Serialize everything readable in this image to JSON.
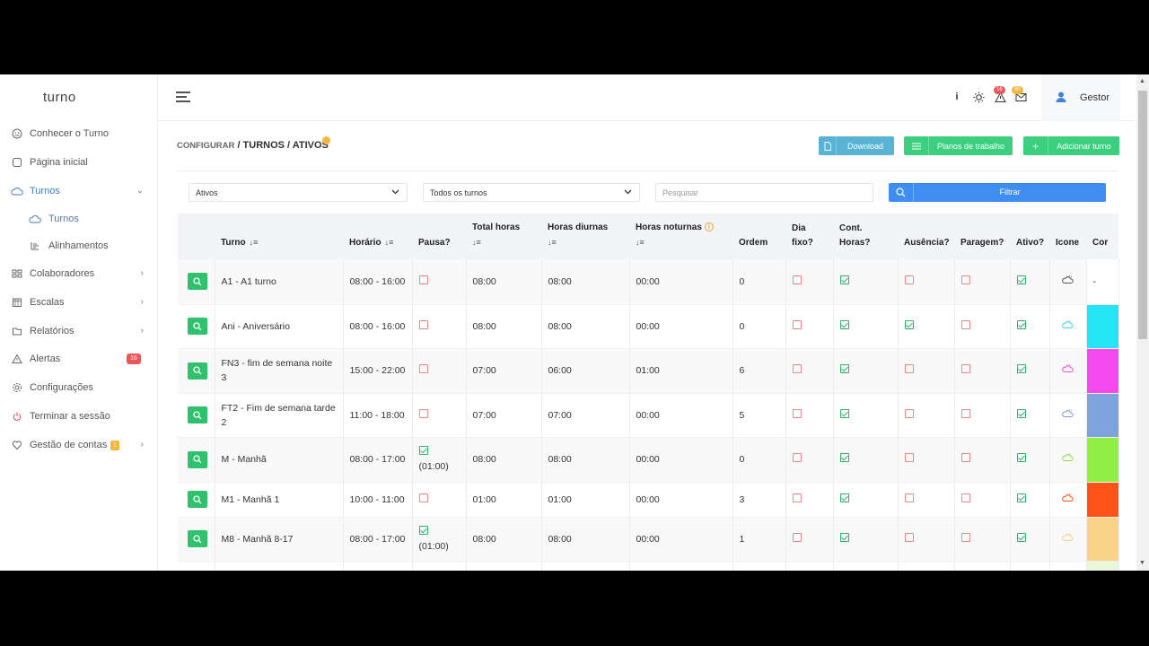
{
  "brand": "turno",
  "sidebar": {
    "items": [
      {
        "label": "Conhecer o Turno",
        "icon": "smile-icon"
      },
      {
        "label": "Página inicial",
        "icon": "square-icon"
      },
      {
        "label": "Turnos",
        "icon": "cloud-icon"
      },
      {
        "label": "Turnos",
        "icon": "cloud-icon"
      },
      {
        "label": "Alinhamentos",
        "icon": "align-icon"
      },
      {
        "label": "Colaboradores",
        "icon": "users-icon"
      },
      {
        "label": "Escalas",
        "icon": "calendar-icon"
      },
      {
        "label": "Relatórios",
        "icon": "folder-icon"
      },
      {
        "label": "Alertas",
        "icon": "warning-icon",
        "badge": "16"
      },
      {
        "label": "Configurações",
        "icon": "gear-icon"
      },
      {
        "label": "Terminar a sessão",
        "icon": "power-icon"
      },
      {
        "label": "Gestão de contas",
        "icon": "heart-icon",
        "badge": "1"
      }
    ]
  },
  "topbar": {
    "info": "i",
    "alerts_badge": "16",
    "mail_badge": "40",
    "user": "Gestor"
  },
  "breadcrumb": {
    "part1": "CONFIGURAR",
    "part2": " / TURNOS / ATIVOS"
  },
  "buttons": {
    "download": "Download",
    "planos": "Planos de trabalho",
    "adicionar": "Adicionar turno"
  },
  "filters": {
    "status": "Ativos",
    "turnos": "Todos os turnos",
    "search_placeholder": "Pesquisar",
    "filtrar": "Filtrar"
  },
  "table": {
    "headers": {
      "turno": "Turno",
      "horario": "Horário",
      "pausa": "Pausa?",
      "total": "Total horas",
      "diurnas": "Horas diurnas",
      "noturnas": "Horas noturnas",
      "ordem": "Ordem",
      "dia_fixo": "Dia fixo?",
      "cont_horas": "Cont. Horas?",
      "ausencia": "Ausência?",
      "paragem": "Paragem?",
      "ativo": "Ativo?",
      "icone": "Icone",
      "cor": "Cor"
    },
    "rows": [
      {
        "turno": "A1 - A1 turno",
        "horario": "08:00 - 16:00",
        "pausa": false,
        "pausa_txt": "",
        "total": "08:00",
        "diurnas": "08:00",
        "noturnas": "00:00",
        "ordem": "0",
        "dia_fixo": false,
        "cont": true,
        "aus": false,
        "par": false,
        "ativo": true,
        "icon_color": "#555555",
        "cor": "",
        "cor_txt": "-"
      },
      {
        "turno": "Ani - Aniversário",
        "horario": "08:00 - 16:00",
        "pausa": false,
        "pausa_txt": "",
        "total": "08:00",
        "diurnas": "08:00",
        "noturnas": "00:00",
        "ordem": "0",
        "dia_fixo": false,
        "cont": true,
        "aus": true,
        "par": false,
        "ativo": true,
        "icon_color": "#33d6f0",
        "cor": "#24e4f6",
        "cor_txt": ""
      },
      {
        "turno": "FN3 - fim de semana noite 3",
        "horario": "15:00 - 22:00",
        "pausa": false,
        "pausa_txt": "",
        "total": "07:00",
        "diurnas": "06:00",
        "noturnas": "01:00",
        "ordem": "6",
        "dia_fixo": false,
        "cont": true,
        "aus": false,
        "par": false,
        "ativo": true,
        "icon_color": "#ee4fe9",
        "cor": "#f44af0",
        "cor_txt": ""
      },
      {
        "turno": "FT2 - Fim de semana tarde 2",
        "horario": "11:00 - 18:00",
        "pausa": false,
        "pausa_txt": "",
        "total": "07:00",
        "diurnas": "07:00",
        "noturnas": "00:00",
        "ordem": "5",
        "dia_fixo": false,
        "cont": true,
        "aus": false,
        "par": false,
        "ativo": true,
        "icon_color": "#7a9fd8",
        "cor": "#7ea3dd",
        "cor_txt": ""
      },
      {
        "turno": "M - Manhã",
        "horario": "08:00 - 17:00",
        "pausa": true,
        "pausa_txt": "(01:00)",
        "total": "08:00",
        "diurnas": "08:00",
        "noturnas": "00:00",
        "ordem": "0",
        "dia_fixo": false,
        "cont": true,
        "aus": false,
        "par": false,
        "ativo": true,
        "icon_color": "#8fe04a",
        "cor": "#90ee44",
        "cor_txt": ""
      },
      {
        "turno": "M1 - Manhã 1",
        "horario": "10:00 - 11:00",
        "pausa": false,
        "pausa_txt": "",
        "total": "01:00",
        "diurnas": "01:00",
        "noturnas": "00:00",
        "ordem": "3",
        "dia_fixo": false,
        "cont": true,
        "aus": false,
        "par": false,
        "ativo": true,
        "icon_color": "#ff4f1f",
        "cor": "#ff5419",
        "cor_txt": ""
      },
      {
        "turno": "M8 - Manhã 8-17",
        "horario": "08:00 - 17:00",
        "pausa": true,
        "pausa_txt": "(01:00)",
        "total": "08:00",
        "diurnas": "08:00",
        "noturnas": "00:00",
        "ordem": "1",
        "dia_fixo": false,
        "cont": true,
        "aus": false,
        "par": false,
        "ativo": true,
        "icon_color": "#f8cf86",
        "cor": "#f9d38a",
        "cor_txt": ""
      }
    ]
  }
}
